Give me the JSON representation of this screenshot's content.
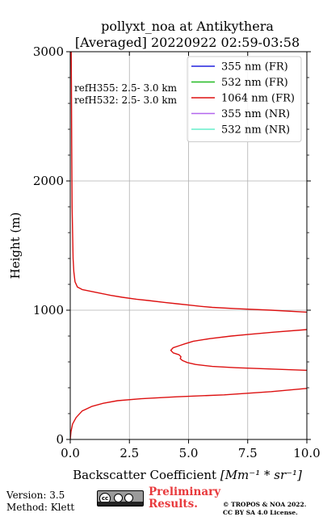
{
  "chart_data": {
    "type": "line",
    "title": [
      "pollyxt_noa at Antikythera",
      "[Averaged] 20220922 02:59-03:58"
    ],
    "xlabel_text": "Backscatter Coefficient ",
    "xlabel_math": "[Mm⁻¹ * sr⁻¹]",
    "ylabel": "Height (m)",
    "xlim": [
      0,
      10
    ],
    "ylim": [
      0,
      3000
    ],
    "xticks": [
      0,
      2.5,
      5,
      7.5,
      10
    ],
    "xtick_labels": [
      "0.0",
      "2.5",
      "5.0",
      "7.5",
      "10.0"
    ],
    "yticks": [
      0,
      1000,
      2000,
      3000
    ],
    "ytick_labels": [
      "0",
      "1000",
      "2000",
      "3000"
    ],
    "grid": true,
    "legend_position": "top-right",
    "annotations": [
      "refH355:  2.5- 3.0 km",
      "refH532:  2.5- 3.0 km"
    ],
    "series": [
      {
        "name": "355 nm (FR)",
        "color": "#2222dd",
        "x": [],
        "y": []
      },
      {
        "name": "532 nm (FR)",
        "color": "#22bb22",
        "x": [],
        "y": []
      },
      {
        "name": "1064 nm (FR)",
        "color": "#dd1111",
        "x": [
          0.0,
          0.03,
          0.1,
          0.25,
          0.5,
          0.9,
          1.4,
          2.0,
          3.0,
          4.5,
          6.5,
          8.5,
          10.0,
          11.0,
          11.0,
          10.0,
          8.5,
          7.0,
          6.0,
          5.3,
          4.95,
          4.75,
          4.65,
          4.68,
          4.6,
          4.35,
          4.25,
          4.35,
          4.6,
          4.85,
          5.2,
          5.9,
          6.8,
          7.5,
          8.6,
          10.0,
          11.0,
          11.0,
          10.0,
          8.5,
          7.0,
          6.0,
          5.5,
          5.0,
          4.5,
          4.0,
          3.3,
          2.8,
          2.2,
          1.7,
          1.3,
          0.9,
          0.5,
          0.3,
          0.2,
          0.15,
          0.12,
          0.1,
          0.08,
          0.07,
          0.06,
          0.05,
          0.04
        ],
        "y": [
          0,
          60,
          120,
          170,
          220,
          255,
          280,
          300,
          315,
          330,
          345,
          370,
          395,
          410,
          525,
          535,
          545,
          555,
          565,
          580,
          595,
          610,
          625,
          640,
          655,
          670,
          690,
          710,
          725,
          740,
          760,
          780,
          800,
          812,
          830,
          850,
          860,
          960,
          985,
          1000,
          1012,
          1022,
          1030,
          1040,
          1050,
          1060,
          1075,
          1085,
          1100,
          1115,
          1130,
          1145,
          1160,
          1180,
          1220,
          1300,
          1400,
          1600,
          1800,
          2000,
          2300,
          2700,
          3000
        ]
      },
      {
        "name": "355 nm (NR)",
        "color": "#b266ee",
        "x": [],
        "y": []
      },
      {
        "name": "532 nm (NR)",
        "color": "#66eecc",
        "x": [],
        "y": []
      }
    ]
  },
  "footer": {
    "version": "Version: 3.5",
    "method": "Method: Klett",
    "preliminary_line1": "Preliminary",
    "preliminary_line2": "Results.",
    "copyright_line1": "© TROPOS & NOA 2022.",
    "copyright_line2": "CC BY SA 4.0 License."
  },
  "license_badge_text": "BY SA"
}
